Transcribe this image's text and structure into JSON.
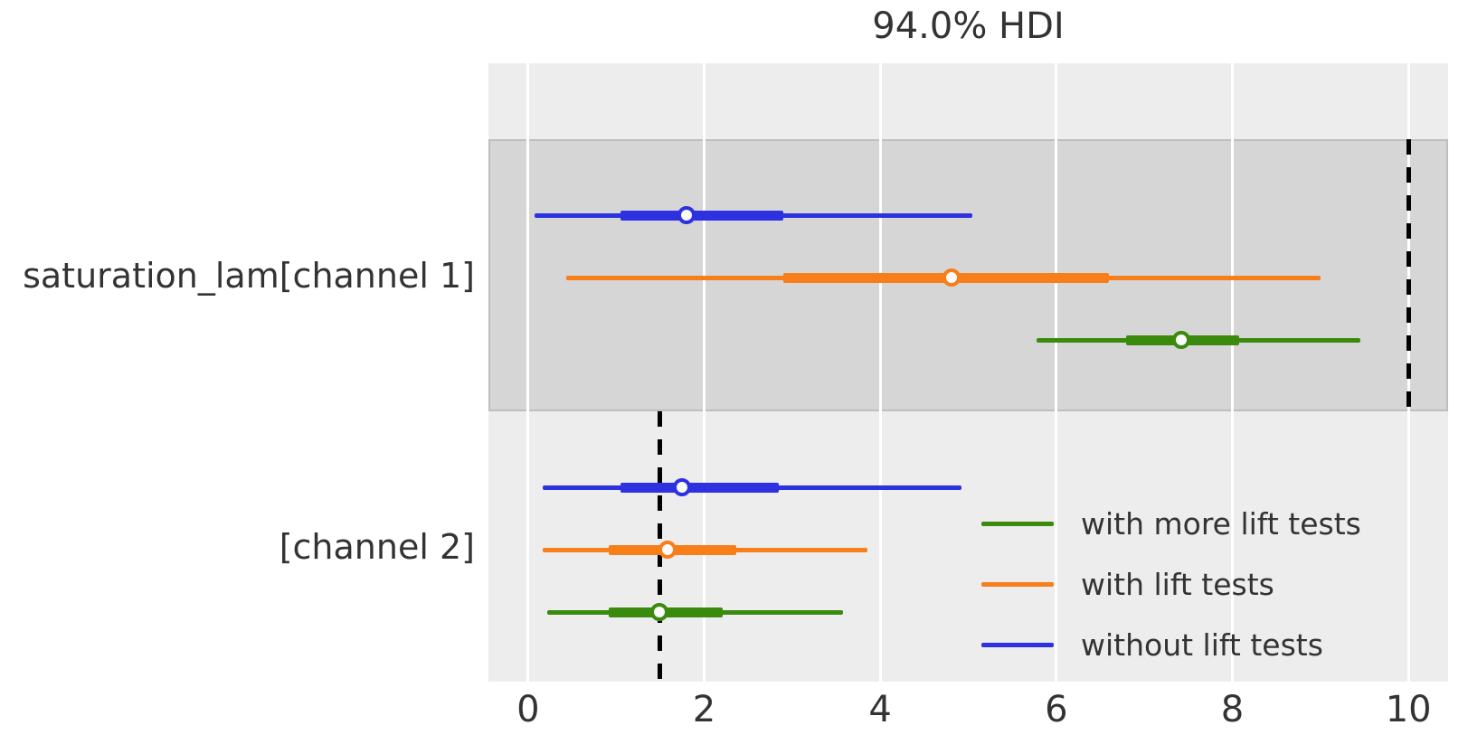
{
  "title": "94.0% HDI",
  "colors": {
    "figure_background": "#ffffff",
    "axes_background": "#ededed",
    "channel1_band": "#d6d6d6",
    "gridline": "#ffffff",
    "reference_line": "#000000",
    "text": "#333333",
    "green": "#3a8b0d",
    "orange": "#f87e1a",
    "blue": "#2d31e0"
  },
  "chart_data": {
    "type": "forest",
    "title": "94.0% HDI",
    "hdi_probability": "94.0%",
    "xlim": [
      -0.45,
      10.45
    ],
    "x_ticks": [
      0,
      2,
      4,
      6,
      8,
      10
    ],
    "grid": "vertical white gridlines at x ticks",
    "legend": {
      "position": "lower right",
      "frame": false,
      "entries": [
        {
          "label": "with more lift tests",
          "color": "#3a8b0d"
        },
        {
          "label": "with lift tests",
          "color": "#f87e1a"
        },
        {
          "label": "without lift tests",
          "color": "#2d31e0"
        }
      ]
    },
    "parameters": [
      {
        "label": "saturation_lam[channel 1]",
        "shaded_band": true,
        "reference_line_x": 10.0,
        "rows": [
          {
            "series": "without lift tests",
            "color": "#2d31e0",
            "hdi": [
              0.07,
              5.05
            ],
            "quartile": [
              1.05,
              2.9
            ],
            "median": 1.8
          },
          {
            "series": "with lift tests",
            "color": "#f87e1a",
            "hdi": [
              0.43,
              9.0
            ],
            "quartile": [
              2.9,
              6.6
            ],
            "median": 4.81
          },
          {
            "series": "with more lift tests",
            "color": "#3a8b0d",
            "hdi": [
              5.78,
              9.45
            ],
            "quartile": [
              6.79,
              8.08
            ],
            "median": 7.42
          }
        ]
      },
      {
        "label": "[channel 2]",
        "shaded_band": false,
        "reference_line_x": 1.5,
        "rows": [
          {
            "series": "without lift tests",
            "color": "#2d31e0",
            "hdi": [
              0.17,
              4.92
            ],
            "quartile": [
              1.05,
              2.85
            ],
            "median": 1.75
          },
          {
            "series": "with lift tests",
            "color": "#f87e1a",
            "hdi": [
              0.17,
              3.85
            ],
            "quartile": [
              0.92,
              2.37
            ],
            "median": 1.58
          },
          {
            "series": "with more lift tests",
            "color": "#3a8b0d",
            "hdi": [
              0.22,
              3.58
            ],
            "quartile": [
              0.92,
              2.21
            ],
            "median": 1.49
          }
        ]
      }
    ]
  }
}
